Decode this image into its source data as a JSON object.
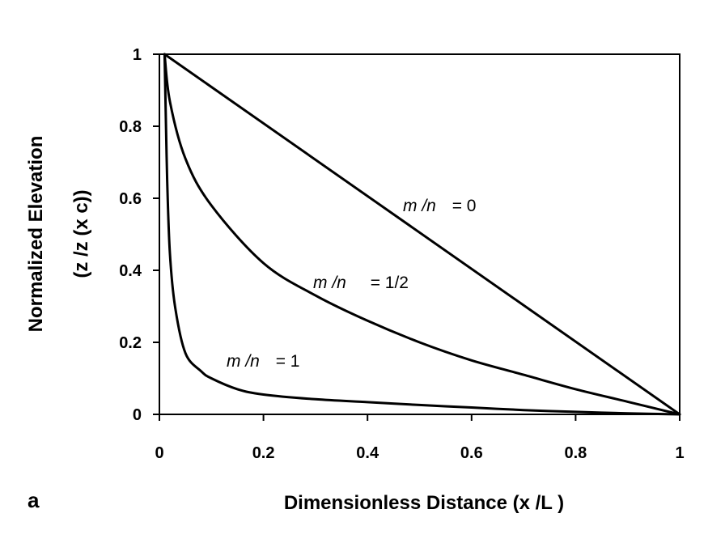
{
  "panel_label": "a",
  "chart_data": {
    "type": "line",
    "xlabel": "Dimensionless Distance (x /L )",
    "ylabel_line1": "Normalized Elevation",
    "ylabel_line2": "(z /z (x c))",
    "xlim": [
      0,
      1
    ],
    "ylim": [
      0,
      1
    ],
    "x_ticks": [
      0,
      0.2,
      0.4,
      0.6,
      0.8,
      1
    ],
    "x_tick_labels": [
      "0",
      "0.2",
      "0.4",
      "0.6",
      "0.8",
      "1"
    ],
    "y_ticks": [
      0,
      0.2,
      0.4,
      0.6,
      0.8,
      1
    ],
    "y_tick_labels": [
      "0",
      "0.2",
      "0.4",
      "0.6",
      "0.8",
      "1"
    ],
    "grid": false,
    "series": [
      {
        "label_italic": "m /n",
        "label_value": "= 0",
        "x": [
          0.01,
          1.0
        ],
        "y": [
          1.0,
          0.0
        ]
      },
      {
        "label_italic": "m /n",
        "label_value": "= 1/2",
        "x": [
          0.01,
          0.02,
          0.05,
          0.1,
          0.2,
          0.3,
          0.4,
          0.5,
          0.6,
          0.7,
          0.8,
          0.9,
          1.0
        ],
        "y": [
          1.0,
          0.87,
          0.71,
          0.58,
          0.42,
          0.33,
          0.26,
          0.2,
          0.15,
          0.11,
          0.07,
          0.035,
          0.0
        ]
      },
      {
        "label_italic": "m /n",
        "label_value": "= 1",
        "x": [
          0.01,
          0.012,
          0.015,
          0.02,
          0.03,
          0.05,
          0.08,
          0.1,
          0.15,
          0.2,
          0.3,
          0.4,
          0.5,
          0.6,
          0.7,
          0.8,
          0.9,
          1.0
        ],
        "y": [
          1.0,
          0.85,
          0.65,
          0.45,
          0.3,
          0.17,
          0.12,
          0.1,
          0.07,
          0.055,
          0.042,
          0.034,
          0.026,
          0.019,
          0.012,
          0.007,
          0.003,
          0.0
        ]
      }
    ]
  }
}
